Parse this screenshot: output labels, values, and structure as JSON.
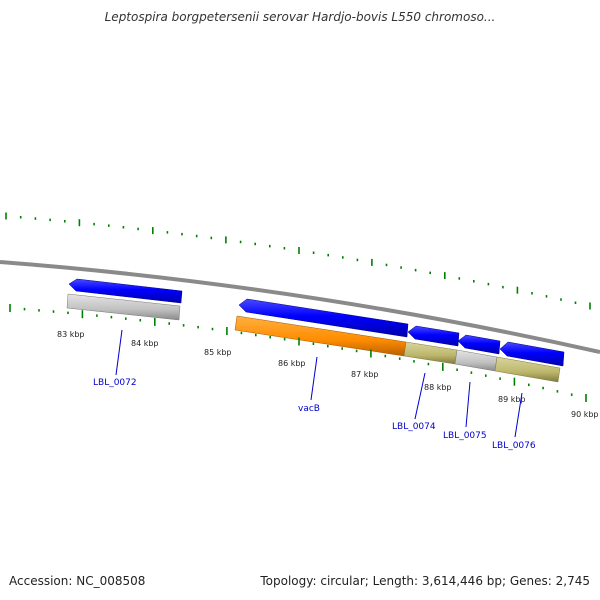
{
  "title": "Leptospira borgpetersenii serovar Hardjo-bovis L550 chromoso...",
  "footer": {
    "accession": "Accession: NC_008508",
    "summary": "Topology: circular; Length: 3,614,446 bp; Genes: 2,745"
  },
  "ruler": {
    "labels": [
      "83 kbp",
      "84 kbp",
      "85 kbp",
      "86 kbp",
      "87 kbp",
      "88 kbp",
      "89 kbp",
      "90 kbp"
    ]
  },
  "genes": [
    {
      "label": "LBL_0072",
      "strand": "reverse",
      "color": "#0000ff",
      "track_color": "#c0c0c0"
    },
    {
      "label": "vacB",
      "strand": "reverse",
      "color": "#0000ff",
      "track_color": "#ff8c00"
    },
    {
      "label": "LBL_0074",
      "strand": "reverse",
      "color": "#0000ff",
      "track_color": "#bdb76b"
    },
    {
      "label": "LBL_0075",
      "strand": "reverse",
      "color": "#0000ff",
      "track_color": "#c0c0c0"
    },
    {
      "label": "LBL_0076",
      "strand": "reverse",
      "color": "#0000ff",
      "track_color": "#bdb76b"
    }
  ],
  "colors": {
    "backbone": "#808080",
    "tick": "#008000"
  }
}
